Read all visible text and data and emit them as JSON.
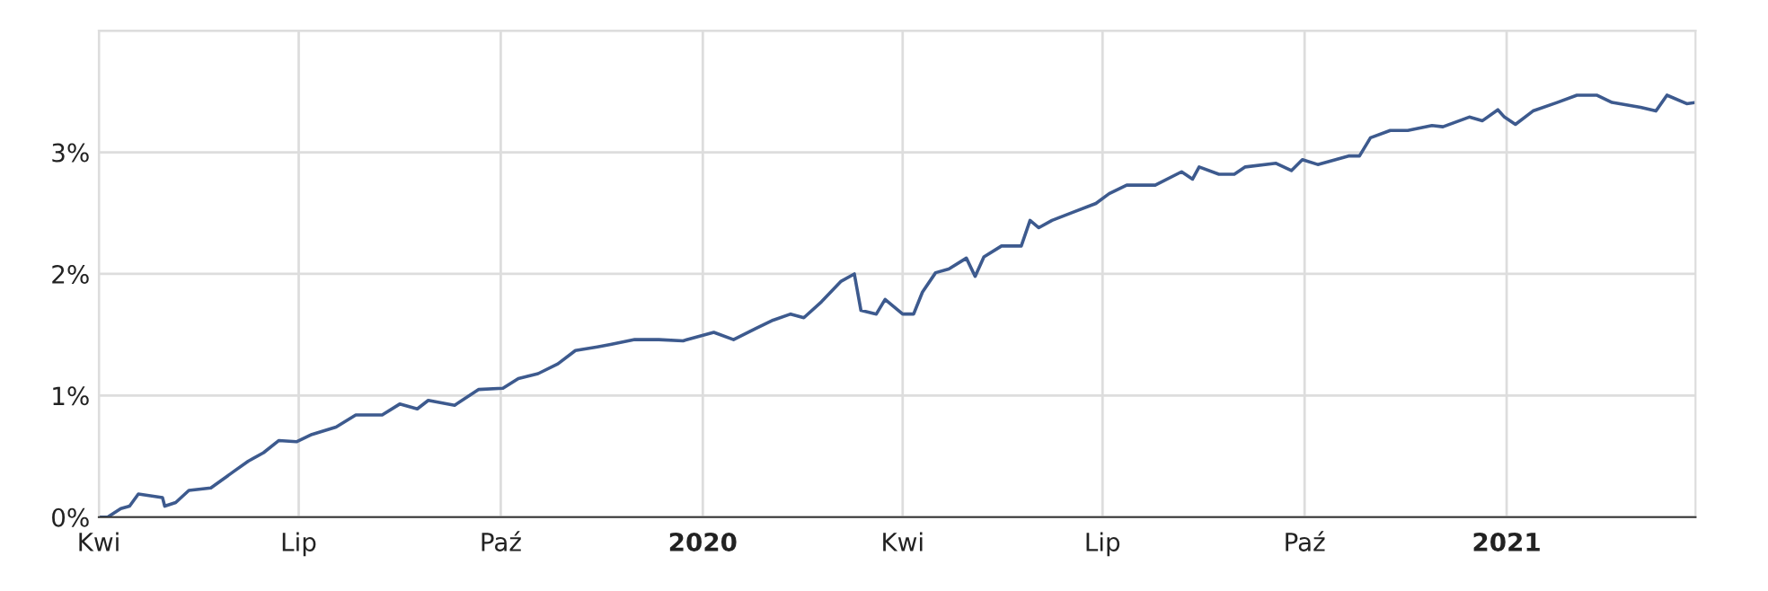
{
  "chart_data": {
    "type": "line",
    "x": [
      "2019-04-01",
      "2019-04-05",
      "2019-04-11",
      "2019-04-15",
      "2019-04-19",
      "2019-04-30",
      "2019-05-01",
      "2019-05-06",
      "2019-05-12",
      "2019-05-22",
      "2019-06-01",
      "2019-06-08",
      "2019-06-15",
      "2019-06-22",
      "2019-06-30",
      "2019-07-07",
      "2019-07-18",
      "2019-07-27",
      "2019-08-08",
      "2019-08-16",
      "2019-08-24",
      "2019-08-29",
      "2019-09-10",
      "2019-09-21",
      "2019-10-02",
      "2019-10-09",
      "2019-10-18",
      "2019-10-27",
      "2019-11-04",
      "2019-11-14",
      "2019-11-20",
      "2019-12-01",
      "2019-12-12",
      "2019-12-23",
      "2020-01-06",
      "2020-01-15",
      "2020-01-25",
      "2020-02-02",
      "2020-02-10",
      "2020-02-16",
      "2020-02-24",
      "2020-03-04",
      "2020-03-10",
      "2020-03-13",
      "2020-03-20",
      "2020-03-24",
      "2020-04-01",
      "2020-04-06",
      "2020-04-10",
      "2020-04-16",
      "2020-04-22",
      "2020-04-30",
      "2020-05-04",
      "2020-05-08",
      "2020-05-16",
      "2020-05-25",
      "2020-05-29",
      "2020-06-02",
      "2020-06-08",
      "2020-06-18",
      "2020-06-28",
      "2020-07-04",
      "2020-07-12",
      "2020-07-25",
      "2020-08-06",
      "2020-08-11",
      "2020-08-14",
      "2020-08-23",
      "2020-08-30",
      "2020-09-04",
      "2020-09-18",
      "2020-09-25",
      "2020-09-30",
      "2020-10-07",
      "2020-10-21",
      "2020-10-26",
      "2020-10-31",
      "2020-11-09",
      "2020-11-17",
      "2020-11-28",
      "2020-12-03",
      "2020-12-15",
      "2020-12-21",
      "2020-12-28",
      "2020-12-31",
      "2021-01-05",
      "2021-01-13",
      "2021-01-24",
      "2021-02-02",
      "2021-02-11",
      "2021-02-18",
      "2021-03-03",
      "2021-03-10",
      "2021-03-15",
      "2021-03-24",
      "2021-03-28"
    ],
    "series": [
      {
        "color": "#3d5a8e",
        "values": [
          0,
          0.0,
          0.07,
          0.09,
          0.19,
          0.16,
          0.09,
          0.12,
          0.22,
          0.24,
          0.37,
          0.46,
          0.53,
          0.63,
          0.62,
          0.68,
          0.74,
          0.84,
          0.84,
          0.93,
          0.89,
          0.96,
          0.92,
          1.05,
          1.06,
          1.14,
          1.18,
          1.26,
          1.37,
          1.4,
          1.42,
          1.46,
          1.46,
          1.45,
          1.52,
          1.46,
          1.55,
          1.62,
          1.67,
          1.64,
          1.77,
          1.94,
          2.0,
          1.7,
          1.67,
          1.79,
          1.67,
          1.67,
          1.85,
          2.01,
          2.04,
          2.13,
          1.98,
          2.14,
          2.23,
          2.23,
          2.44,
          2.38,
          2.44,
          2.51,
          2.58,
          2.66,
          2.73,
          2.73,
          2.84,
          2.78,
          2.88,
          2.82,
          2.82,
          2.88,
          2.91,
          2.85,
          2.94,
          2.9,
          2.97,
          2.97,
          3.12,
          3.18,
          3.18,
          3.22,
          3.21,
          3.29,
          3.26,
          3.35,
          3.29,
          3.23,
          3.34,
          3.41,
          3.47,
          3.47,
          3.41,
          3.37,
          3.34,
          3.47,
          3.4,
          3.41
        ]
      }
    ],
    "xlim": [
      "2019-04-01",
      "2021-03-28"
    ],
    "xticks": [
      {
        "value": "2019-04-01",
        "label": "Kwi"
      },
      {
        "value": "2019-07-01",
        "label": "Lip"
      },
      {
        "value": "2019-10-01",
        "label": "Paź"
      },
      {
        "value": "2020-01-01",
        "label": "2020"
      },
      {
        "value": "2020-04-01",
        "label": "Kwi"
      },
      {
        "value": "2020-07-01",
        "label": "Lip"
      },
      {
        "value": "2020-10-01",
        "label": "Paź"
      },
      {
        "value": "2021-01-01",
        "label": "2021"
      }
    ],
    "ylim": [
      0,
      4
    ],
    "yticks": [
      {
        "value": 0,
        "label": "0%"
      },
      {
        "value": 1,
        "label": "1%"
      },
      {
        "value": 2,
        "label": "2%"
      },
      {
        "value": 3,
        "label": "3%"
      },
      {
        "value": 4,
        "label": null
      }
    ],
    "grid": true
  }
}
